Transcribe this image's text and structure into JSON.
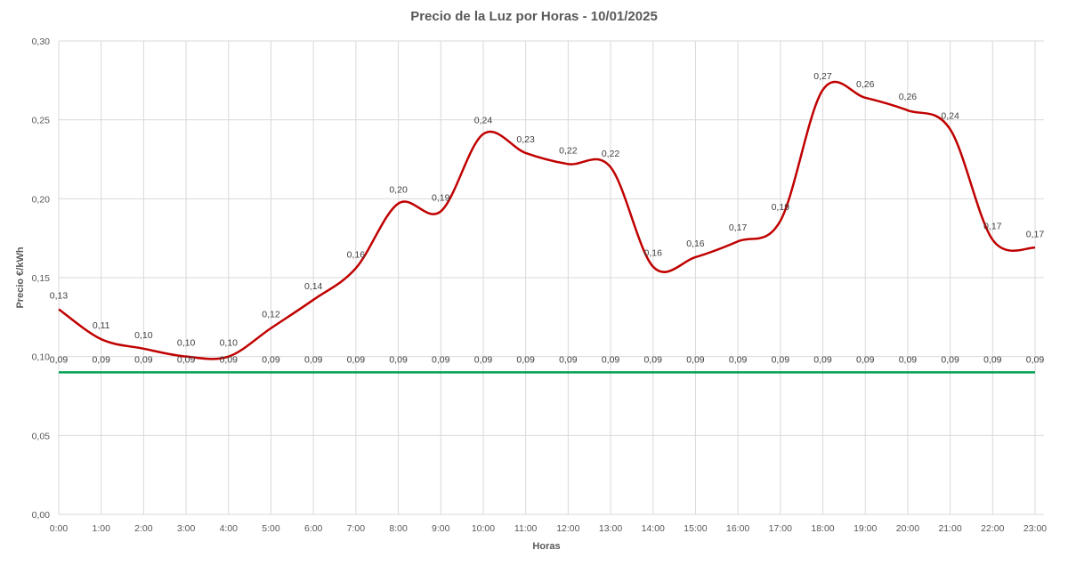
{
  "chart_data": {
    "type": "line",
    "title": "Precio de la Luz por Horas - 10/01/2025",
    "xlabel": "Horas",
    "ylabel": "Precio €/kWh",
    "ylim": [
      0,
      0.3
    ],
    "yticks": [
      "0,00",
      "0,05",
      "0,10",
      "0,15",
      "0,20",
      "0,25",
      "0,30"
    ],
    "ytick_values": [
      0,
      0.05,
      0.1,
      0.15,
      0.2,
      0.25,
      0.3
    ],
    "grid": true,
    "categories": [
      "0:00",
      "1:00",
      "2:00",
      "3:00",
      "4:00",
      "5:00",
      "6:00",
      "7:00",
      "8:00",
      "9:00",
      "10:00",
      "11:00",
      "12:00",
      "13:00",
      "14:00",
      "15:00",
      "16:00",
      "17:00",
      "18:00",
      "19:00",
      "20:00",
      "21:00",
      "22:00",
      "23:00"
    ],
    "series": [
      {
        "color": "#C00000",
        "smooth": true,
        "values": [
          0.13,
          0.111,
          0.105,
          0.1,
          0.1,
          0.118,
          0.136,
          0.156,
          0.197,
          0.192,
          0.241,
          0.229,
          0.222,
          0.22,
          0.157,
          0.163,
          0.173,
          0.186,
          0.269,
          0.264,
          0.256,
          0.244,
          0.174,
          0.169
        ],
        "labels": [
          "0,13",
          "0,11",
          "0,10",
          "0,10",
          "0,10",
          "0,12",
          "0,14",
          "0,16",
          "0,20",
          "0,19",
          "0,24",
          "0,23",
          "0,22",
          "0,22",
          "0,16",
          "0,16",
          "0,17",
          "0,19",
          "0,27",
          "0,26",
          "0,26",
          "0,24",
          "0,17",
          "0,17"
        ]
      },
      {
        "color": "#00A050",
        "smooth": false,
        "values": [
          0.09,
          0.09,
          0.09,
          0.09,
          0.09,
          0.09,
          0.09,
          0.09,
          0.09,
          0.09,
          0.09,
          0.09,
          0.09,
          0.09,
          0.09,
          0.09,
          0.09,
          0.09,
          0.09,
          0.09,
          0.09,
          0.09,
          0.09,
          0.09
        ],
        "labels": [
          "0,09",
          "0,09",
          "0,09",
          "0,09",
          "0,09",
          "0,09",
          "0,09",
          "0,09",
          "0,09",
          "0,09",
          "0,09",
          "0,09",
          "0,09",
          "0,09",
          "0,09",
          "0,09",
          "0,09",
          "0,09",
          "0,09",
          "0,09",
          "0,09",
          "0,09",
          "0,09",
          "0,09"
        ]
      }
    ]
  }
}
